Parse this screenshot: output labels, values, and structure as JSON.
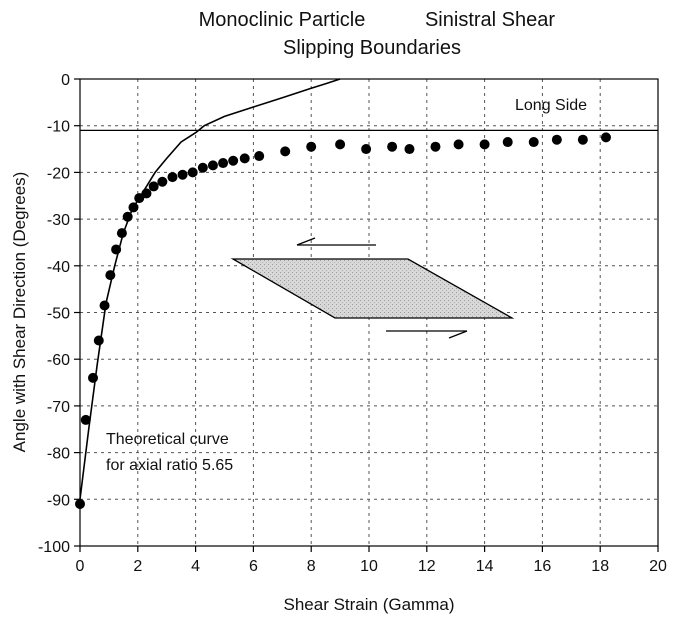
{
  "chart_data": {
    "type": "scatter",
    "title_left": "Monoclinic Particle",
    "title_right": "Sinistral Shear",
    "subtitle": "Slipping Boundaries",
    "xlabel": "Shear Strain (Gamma)",
    "ylabel": "Angle with Shear Direction (Degrees)",
    "xlim": [
      0,
      20
    ],
    "ylim": [
      -100,
      0
    ],
    "x_ticks": [
      0,
      2,
      4,
      6,
      8,
      10,
      12,
      14,
      16,
      18,
      20
    ],
    "y_ticks": [
      0,
      -10,
      -20,
      -30,
      -40,
      -50,
      -60,
      -70,
      -80,
      -90,
      -100
    ],
    "x_tick_labels": [
      "0",
      "2",
      "4",
      "6",
      "8",
      "10",
      "12",
      "14",
      "16",
      "18",
      "20"
    ],
    "y_tick_labels": [
      "0",
      "-10",
      "-20",
      "-30",
      "-40",
      "-50",
      "-60",
      "-70",
      "-80",
      "-90",
      "-100"
    ],
    "grid": true,
    "reference_line": {
      "y": -11,
      "label": "Long Side"
    },
    "annotation_lines": [
      "Theoretical curve",
      "for axial ratio 5.65"
    ],
    "series": [
      {
        "style": "markers",
        "x": [
          0.0,
          0.2,
          0.45,
          0.65,
          0.85,
          1.05,
          1.25,
          1.45,
          1.65,
          1.85,
          2.05,
          2.3,
          2.55,
          2.85,
          3.2,
          3.55,
          3.9,
          4.25,
          4.6,
          4.95,
          5.3,
          5.7,
          6.2,
          7.1,
          8.0,
          9.0,
          9.9,
          10.8,
          11.4,
          12.3,
          13.1,
          14.0,
          14.8,
          15.7,
          16.5,
          17.4,
          18.2
        ],
        "y": [
          -91,
          -73,
          -64,
          -56,
          -48.5,
          -42,
          -36.5,
          -33,
          -29.5,
          -27.5,
          -25.5,
          -24.5,
          -23,
          -22,
          -21,
          -20.5,
          -20,
          -19,
          -18.5,
          -18,
          -17.5,
          -17,
          -16.5,
          -15.5,
          -14.5,
          -14,
          -15,
          -14.5,
          -15,
          -14.5,
          -14,
          -14,
          -13.5,
          -13.5,
          -13,
          -13,
          -12.5
        ]
      },
      {
        "style": "line",
        "x": [
          0.0,
          0.3,
          0.6,
          0.9,
          1.2,
          1.5,
          1.8,
          2.0,
          2.3,
          2.6,
          3.0,
          3.5,
          4.0,
          4.3,
          5.0,
          6.0,
          7.0,
          8.0,
          8.5,
          9.0
        ],
        "y": [
          -90,
          -75,
          -61,
          -48,
          -40,
          -33,
          -28,
          -26,
          -23,
          -20,
          -17,
          -13.5,
          -11.5,
          -10,
          -8,
          -6,
          -4,
          -2,
          -1,
          0
        ]
      }
    ],
    "diagram": {
      "top_arrow_direction": "left",
      "bottom_arrow_direction": "right",
      "shape": "parallelogram",
      "fill_color": "#d0d0d0"
    }
  }
}
